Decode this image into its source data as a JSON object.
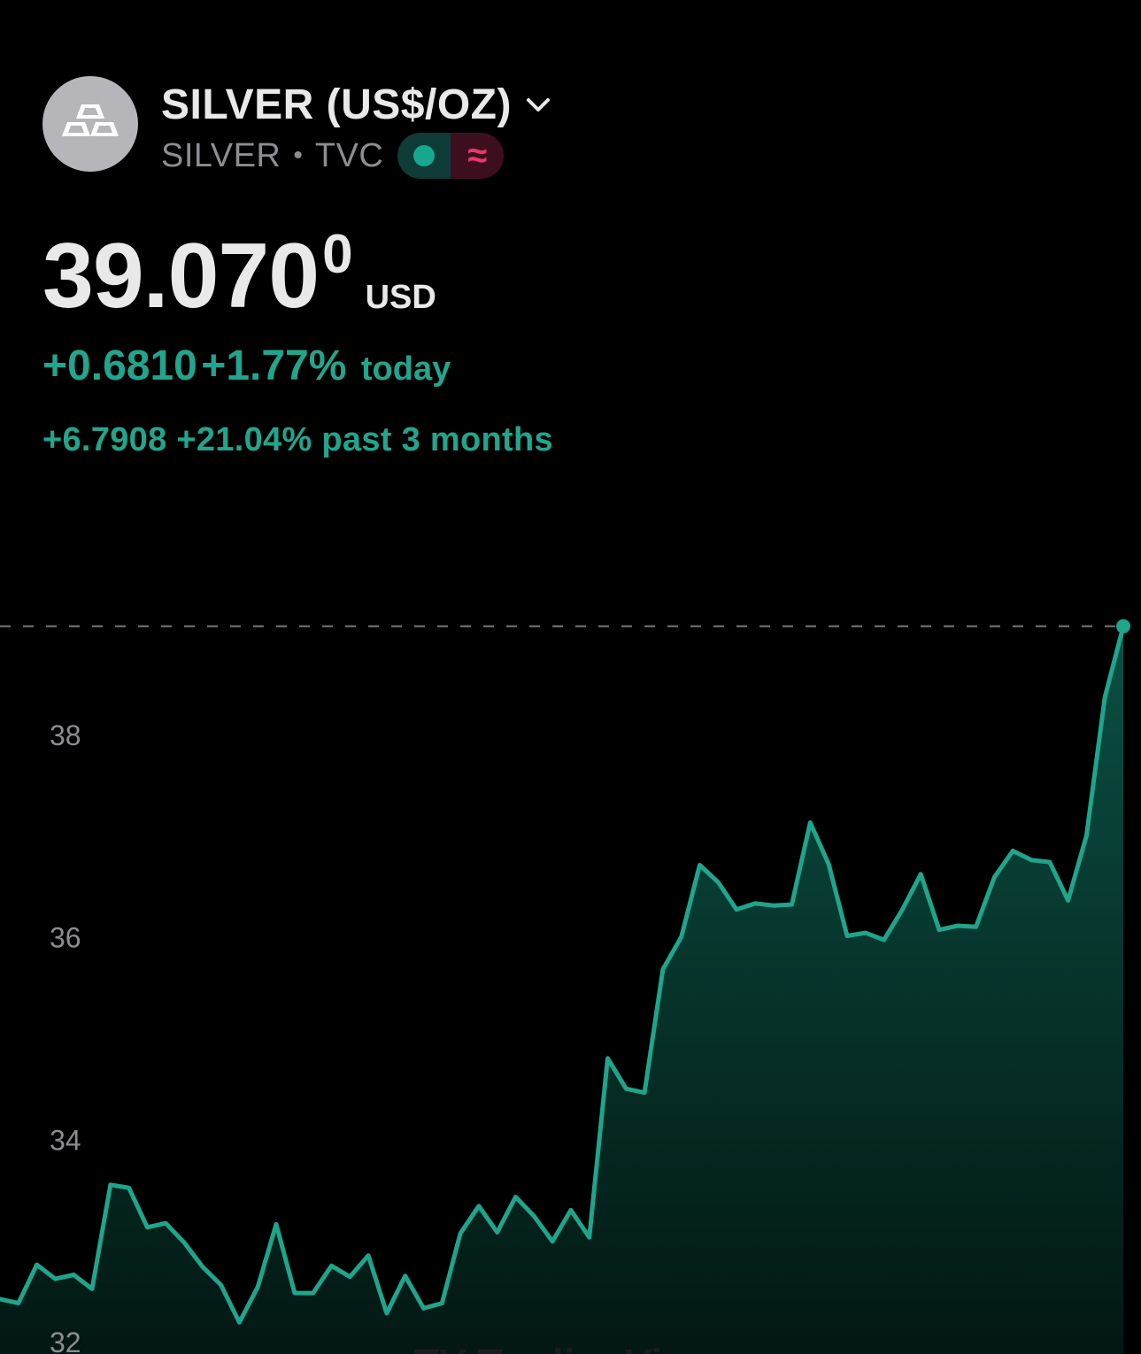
{
  "header": {
    "title": "SILVER (US$/OZ)",
    "symbol": "SILVER",
    "exchange": "TVC",
    "separator": "•",
    "status_symbol": "≈",
    "icons": {
      "avatar": "silver-bars-icon",
      "dropdown": "chevron-down-icon",
      "market_open": "green-dot-icon",
      "delayed": "approx-wave-icon"
    }
  },
  "price": {
    "main": "39.070",
    "superscript": "0",
    "currency": "USD"
  },
  "change_today": {
    "absolute": "+0.6810",
    "percent": "+1.77%",
    "label": "today"
  },
  "change_period": {
    "text": "+6.7908 +21.04% past 3 months"
  },
  "watermark": "TV TradingView",
  "colors": {
    "background": "#000000",
    "accent": "#22a58c",
    "line": "#1fa58b",
    "fill_top": "#0b5446",
    "negative": "#e8386b",
    "axis_text": "#8d8d91"
  },
  "chart_data": {
    "type": "area",
    "title": "",
    "xlabel": "",
    "ylabel": "",
    "y_ticks": [
      "32",
      "34",
      "36",
      "38"
    ],
    "y_tick_values": [
      32,
      34,
      36,
      38
    ],
    "ylim": [
      31.7,
      39.3
    ],
    "grid": false,
    "last_value": 39.07,
    "last_value_dashed_line": true,
    "values": [
      32.42,
      32.38,
      32.76,
      32.62,
      32.66,
      32.52,
      33.55,
      33.52,
      33.13,
      33.17,
      32.98,
      32.74,
      32.56,
      32.19,
      32.54,
      33.16,
      32.48,
      32.48,
      32.75,
      32.64,
      32.85,
      32.28,
      32.65,
      32.33,
      32.38,
      33.07,
      33.34,
      33.08,
      33.43,
      33.24,
      32.99,
      33.3,
      33.03,
      34.8,
      34.5,
      34.46,
      35.68,
      36.0,
      36.71,
      36.54,
      36.27,
      36.33,
      36.31,
      36.32,
      37.13,
      36.72,
      36.01,
      36.04,
      35.97,
      36.27,
      36.62,
      36.07,
      36.11,
      36.1,
      36.59,
      36.85,
      36.76,
      36.74,
      36.36,
      37.0,
      38.37,
      39.07
    ]
  }
}
